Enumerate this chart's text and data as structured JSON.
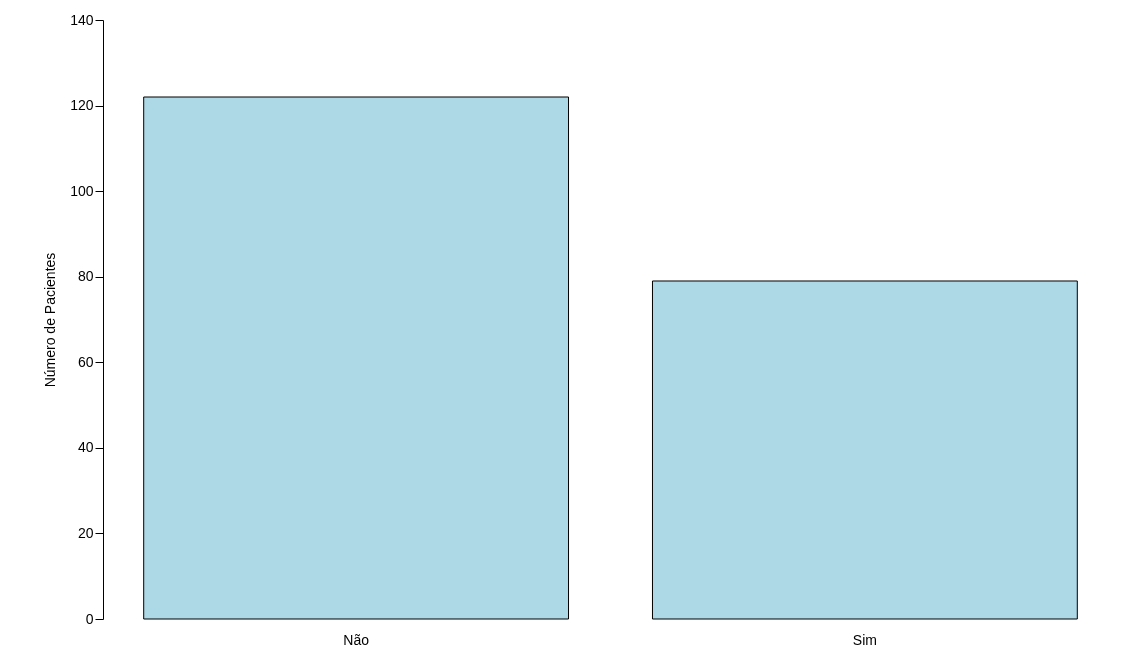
{
  "chart_data": {
    "type": "bar",
    "ylabel": "Número de Pacientes",
    "categories": [
      "Não",
      "Sim"
    ],
    "values": [
      122,
      79
    ],
    "color": "#add8e6",
    "ylim": [
      0,
      140
    ],
    "yticks": [
      0,
      20,
      40,
      60,
      80,
      100,
      120,
      140
    ],
    "grid": false
  }
}
